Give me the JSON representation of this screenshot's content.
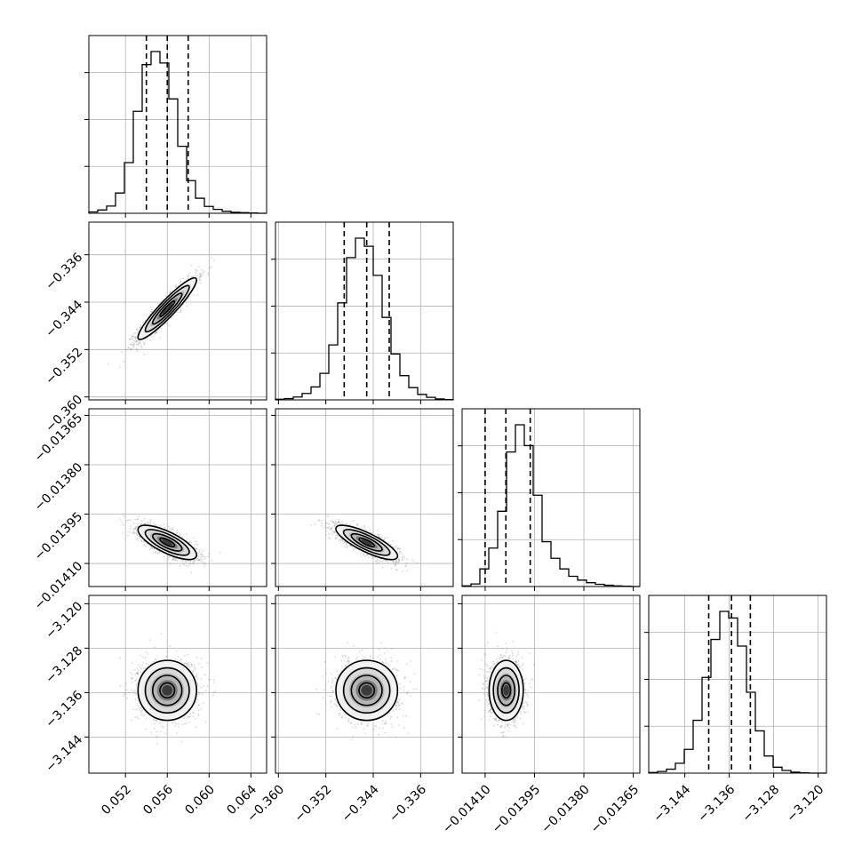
{
  "chart_data": {
    "type": "corner",
    "parameters": [
      {
        "range": [
          0.0485,
          0.0655
        ],
        "ticks": [
          0.052,
          0.056,
          0.06,
          0.064
        ],
        "tick_labels": [
          "0.052",
          "0.056",
          "0.060",
          "0.064"
        ],
        "mean": 0.056,
        "sd": 0.0014,
        "quantiles": [
          0.054,
          0.056,
          0.058
        ]
      },
      {
        "range": [
          -0.3605,
          -0.3305
        ],
        "ticks": [
          -0.36,
          -0.352,
          -0.344,
          -0.336
        ],
        "tick_labels": [
          "−0.360",
          "−0.352",
          "−0.344",
          "−0.336"
        ],
        "mean": -0.3451,
        "sd": 0.0026,
        "quantiles": [
          -0.3489,
          -0.3451,
          -0.3413
        ]
      },
      {
        "range": [
          -0.01417,
          -0.01363
        ],
        "ticks": [
          -0.0141,
          -0.01395,
          -0.0138,
          -0.01365
        ],
        "tick_labels": [
          "−0.01410",
          "−0.01395",
          "−0.01380",
          "−0.01365"
        ],
        "mean": -0.014036,
        "sd": 2.6e-05,
        "quantiles": [
          -0.0141,
          -0.014037,
          -0.013963
        ]
      },
      {
        "range": [
          -3.1505,
          -3.1185
        ],
        "ticks": [
          -3.144,
          -3.136,
          -3.128,
          -3.12
        ],
        "tick_labels": [
          "−3.144",
          "−3.136",
          "−3.128",
          "−3.120"
        ],
        "mean": -3.1356,
        "sd": 0.0027,
        "quantiles": [
          -3.1397,
          -3.1356,
          -3.1322
        ]
      }
    ],
    "histograms": [
      {
        "bins": 20,
        "counts": [
          4,
          10,
          22,
          62,
          155,
          312,
          455,
          495,
          460,
          350,
          205,
          100,
          46,
          21,
          12,
          6,
          3,
          2,
          1,
          0
        ]
      },
      {
        "bins": 20,
        "counts": [
          2,
          4,
          9,
          20,
          40,
          82,
          170,
          300,
          440,
          500,
          475,
          385,
          255,
          142,
          75,
          38,
          17,
          8,
          3,
          1
        ]
      },
      {
        "bins": 20,
        "counts": [
          2,
          8,
          55,
          120,
          235,
          420,
          505,
          440,
          285,
          140,
          88,
          55,
          32,
          20,
          12,
          7,
          4,
          2,
          1,
          0
        ]
      },
      {
        "bins": 20,
        "counts": [
          2,
          5,
          12,
          30,
          72,
          160,
          290,
          405,
          490,
          470,
          385,
          245,
          128,
          52,
          18,
          8,
          3,
          1,
          0,
          0
        ]
      }
    ],
    "correlations": [
      [
        1,
        0.93,
        -0.74,
        0.0
      ],
      [
        0.93,
        1,
        -0.8,
        0.0
      ],
      [
        -0.74,
        -0.8,
        1,
        0.0
      ],
      [
        0.0,
        0.0,
        0.0,
        1
      ]
    ],
    "grid": true,
    "quantile_style": "dashed"
  }
}
